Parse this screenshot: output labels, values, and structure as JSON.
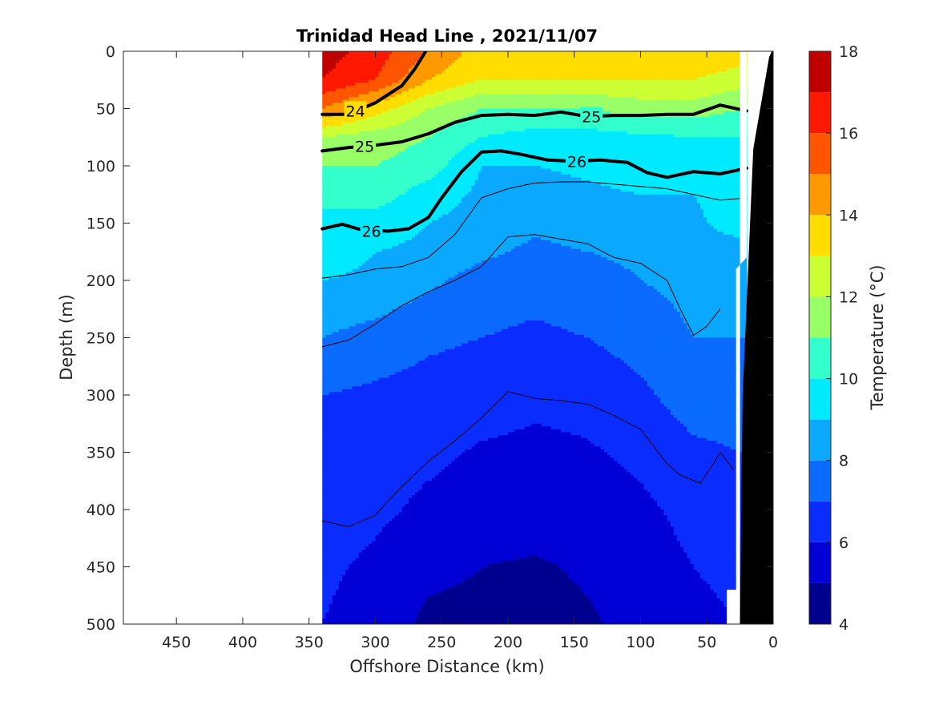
{
  "chart_data": {
    "type": "heatmap",
    "title": "Trinidad Head Line , 2021/11/07",
    "xlabel": "Offshore Distance (km)",
    "ylabel": "Depth (m)",
    "colorbar_label": "Temperature (°C)",
    "xlim": [
      490,
      0
    ],
    "ylim": [
      500,
      0
    ],
    "x_reversed": true,
    "y_reversed": true,
    "xticks": [
      450,
      400,
      350,
      300,
      250,
      200,
      150,
      100,
      50,
      0
    ],
    "yticks": [
      0,
      50,
      100,
      150,
      200,
      250,
      300,
      350,
      400,
      450,
      500
    ],
    "colorbar_ticks": [
      4,
      6,
      8,
      10,
      12,
      14,
      16,
      18
    ],
    "clim": [
      4,
      18
    ],
    "colormap": [
      "#00008f",
      "#0000d6",
      "#0a2cff",
      "#0b6bff",
      "#0aa8ff",
      "#00eaff",
      "#33ffcc",
      "#99ff66",
      "#ccff33",
      "#ffdd00",
      "#ff9900",
      "#ff5500",
      "#ff1800",
      "#c00000"
    ],
    "bathymetry_color": "#000000",
    "data_x_range": [
      340,
      20
    ],
    "section_temperature": {
      "x": [
        340,
        300,
        260,
        220,
        180,
        140,
        100,
        60,
        25
      ],
      "depth": [
        0,
        25,
        50,
        75,
        100,
        125,
        150,
        175,
        200,
        250,
        300,
        350,
        400,
        450,
        500
      ],
      "values": [
        [
          17.5,
          16.5,
          15.0,
          13.5,
          13.5,
          13.5,
          14.0,
          14.0,
          13.5
        ],
        [
          17.0,
          16.0,
          14.0,
          13.0,
          13.0,
          13.0,
          13.0,
          13.0,
          12.5
        ],
        [
          15.0,
          13.5,
          12.0,
          11.0,
          11.0,
          11.0,
          11.5,
          11.5,
          11.0
        ],
        [
          12.0,
          11.5,
          11.0,
          10.0,
          9.6,
          9.6,
          9.8,
          10.0,
          10.0
        ],
        [
          11.0,
          11.0,
          10.5,
          9.0,
          9.0,
          9.2,
          9.5,
          9.5,
          9.5
        ],
        [
          10.5,
          10.5,
          9.5,
          8.8,
          8.6,
          8.8,
          9.0,
          9.0,
          9.5
        ],
        [
          9.5,
          9.5,
          9.0,
          8.6,
          8.2,
          8.4,
          8.6,
          8.8,
          9.5
        ],
        [
          9.5,
          9.0,
          8.8,
          8.2,
          7.8,
          8.0,
          8.2,
          8.5,
          8.5
        ],
        [
          9.0,
          8.8,
          8.2,
          7.6,
          7.4,
          7.6,
          8.0,
          8.3,
          8.2
        ],
        [
          8.0,
          7.6,
          7.2,
          7.0,
          6.8,
          7.0,
          7.4,
          8.0,
          8.0
        ],
        [
          7.0,
          6.8,
          6.6,
          6.4,
          6.2,
          6.3,
          6.8,
          7.5,
          7.5
        ],
        [
          6.8,
          6.4,
          6.2,
          5.9,
          5.8,
          5.9,
          6.2,
          6.8,
          7.0
        ],
        [
          6.5,
          6.2,
          5.8,
          5.5,
          5.4,
          5.5,
          5.8,
          6.3,
          6.5
        ],
        [
          6.2,
          5.8,
          5.2,
          5.0,
          4.9,
          5.1,
          5.5,
          6.0,
          6.2
        ],
        [
          6.0,
          5.5,
          4.8,
          4.8,
          4.8,
          4.9,
          5.2,
          5.8,
          6.0
        ]
      ]
    },
    "density_contours": [
      {
        "label": "24",
        "emphasized": true,
        "points": [
          [
            340,
            55
          ],
          [
            320,
            55
          ],
          [
            300,
            45
          ],
          [
            280,
            30
          ],
          [
            270,
            15
          ],
          [
            262,
            0
          ]
        ]
      },
      {
        "label": "25",
        "emphasized": true,
        "points": [
          [
            340,
            87
          ],
          [
            320,
            84
          ],
          [
            300,
            82
          ],
          [
            280,
            79
          ],
          [
            260,
            72
          ],
          [
            240,
            62
          ],
          [
            220,
            56
          ],
          [
            200,
            55
          ],
          [
            180,
            56
          ],
          [
            160,
            53
          ],
          [
            140,
            57
          ],
          [
            120,
            56
          ],
          [
            100,
            56
          ],
          [
            80,
            55
          ],
          [
            60,
            55
          ],
          [
            40,
            47
          ],
          [
            20,
            52
          ]
        ]
      },
      {
        "label": "26",
        "emphasized": true,
        "points": [
          [
            340,
            155
          ],
          [
            325,
            151
          ],
          [
            310,
            156
          ],
          [
            290,
            157
          ],
          [
            275,
            155
          ],
          [
            260,
            145
          ],
          [
            250,
            128
          ],
          [
            235,
            105
          ],
          [
            220,
            88
          ],
          [
            205,
            87
          ],
          [
            190,
            90
          ],
          [
            170,
            95
          ],
          [
            150,
            96
          ],
          [
            130,
            95
          ],
          [
            110,
            97
          ],
          [
            95,
            106
          ],
          [
            80,
            110
          ],
          [
            60,
            105
          ],
          [
            40,
            107
          ],
          [
            20,
            102
          ]
        ]
      },
      {
        "label": "",
        "emphasized": false,
        "points": [
          [
            340,
            198
          ],
          [
            320,
            195
          ],
          [
            300,
            190
          ],
          [
            280,
            188
          ],
          [
            260,
            180
          ],
          [
            240,
            160
          ],
          [
            220,
            128
          ],
          [
            200,
            120
          ],
          [
            180,
            115
          ],
          [
            160,
            114
          ],
          [
            140,
            114
          ],
          [
            120,
            116
          ],
          [
            100,
            118
          ],
          [
            80,
            120
          ],
          [
            60,
            125
          ],
          [
            40,
            130
          ],
          [
            20,
            128
          ]
        ]
      },
      {
        "label": "",
        "emphasized": false,
        "points": [
          [
            340,
            258
          ],
          [
            320,
            252
          ],
          [
            300,
            238
          ],
          [
            280,
            222
          ],
          [
            260,
            210
          ],
          [
            240,
            200
          ],
          [
            220,
            188
          ],
          [
            200,
            162
          ],
          [
            180,
            160
          ],
          [
            160,
            164
          ],
          [
            140,
            168
          ],
          [
            120,
            180
          ],
          [
            100,
            185
          ],
          [
            80,
            200
          ],
          [
            70,
            225
          ],
          [
            60,
            248
          ],
          [
            50,
            240
          ],
          [
            40,
            225
          ]
        ]
      },
      {
        "label": "",
        "emphasized": false,
        "points": [
          [
            340,
            410
          ],
          [
            320,
            415
          ],
          [
            300,
            405
          ],
          [
            290,
            392
          ],
          [
            280,
            380
          ],
          [
            260,
            358
          ],
          [
            240,
            340
          ],
          [
            220,
            320
          ],
          [
            200,
            297
          ],
          [
            180,
            303
          ],
          [
            160,
            305
          ],
          [
            140,
            308
          ],
          [
            120,
            318
          ],
          [
            100,
            330
          ],
          [
            90,
            345
          ],
          [
            80,
            360
          ],
          [
            70,
            370
          ],
          [
            55,
            377
          ],
          [
            45,
            360
          ],
          [
            40,
            350
          ],
          [
            30,
            365
          ]
        ]
      }
    ],
    "contour_labels": [
      {
        "text": "24",
        "x": 315,
        "y": 52
      },
      {
        "text": "25",
        "x": 137,
        "y": 57
      },
      {
        "text": "25",
        "x": 308,
        "y": 83
      },
      {
        "text": "26",
        "x": 148,
        "y": 96
      },
      {
        "text": "26",
        "x": 303,
        "y": 157
      }
    ]
  }
}
